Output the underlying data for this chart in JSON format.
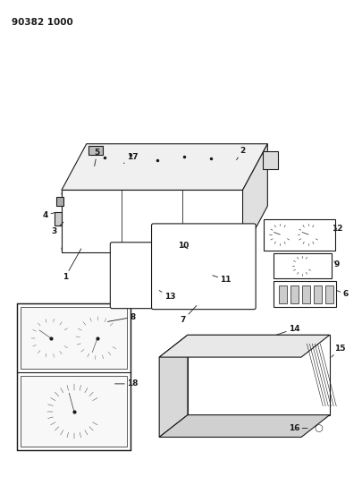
{
  "title_code": "90382 1000",
  "bg_color": "#ffffff",
  "line_color": "#1a1a1a",
  "fig_width": 4.06,
  "fig_height": 5.33,
  "dpi": 100
}
